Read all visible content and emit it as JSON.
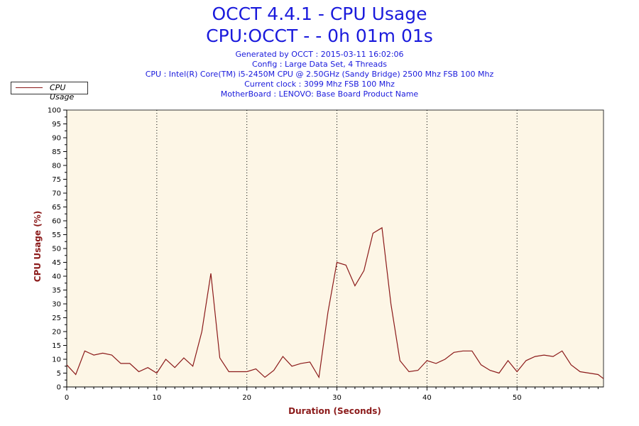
{
  "header": {
    "title_line1": "OCCT 4.4.1 - CPU Usage",
    "title_line2": "CPU:OCCT -  - 0h 01m 01s",
    "generated": "Generated by OCCT : 2015-03-11 16:02:06",
    "config": "Config : Large Data Set, 4 Threads",
    "cpu": "CPU : Intel(R) Core(TM) i5-2450M CPU @ 2.50GHz (Sandy Bridge) 2500 Mhz FSB 100 Mhz",
    "clock": "Current clock : 3099 Mhz FSB 100 Mhz",
    "motherboard": "MotherBoard : LENOVO: Base Board Product Name"
  },
  "colors": {
    "line": "#8b1a1a",
    "plot_background": "#fdf6e6",
    "title": "#1a1adc",
    "axis_label": "#8b1a1a"
  },
  "chart_data": {
    "type": "line",
    "xlabel": "Duration (Seconds)",
    "ylabel": "CPU Usage (%)",
    "xlim": [
      0,
      59.6
    ],
    "ylim": [
      0,
      100
    ],
    "x_ticks": [
      0,
      10,
      20,
      30,
      40,
      50
    ],
    "y_ticks": [
      0,
      5,
      10,
      15,
      20,
      25,
      30,
      35,
      40,
      45,
      50,
      55,
      60,
      65,
      70,
      75,
      80,
      85,
      90,
      95,
      100
    ],
    "grid": "vertical dotted at 10 s intervals",
    "legend_position": "top-left",
    "series": [
      {
        "name": "CPU Usage",
        "x": [
          0,
          1,
          2,
          3,
          4,
          5,
          6,
          7,
          8,
          9,
          10,
          11,
          12,
          13,
          14,
          15,
          16,
          17,
          18,
          19,
          20,
          21,
          22,
          23,
          24,
          25,
          26,
          27,
          28,
          29,
          30,
          31,
          32,
          33,
          34,
          35,
          36,
          37,
          38,
          39,
          40,
          41,
          42,
          43,
          44,
          45,
          46,
          47,
          48,
          49,
          50,
          51,
          52,
          53,
          54,
          55,
          56,
          57,
          58,
          59,
          59.6
        ],
        "values": [
          8,
          4.5,
          13,
          11.5,
          12.2,
          11.5,
          8.5,
          8.5,
          5.5,
          7,
          5,
          10,
          7,
          10.5,
          7.5,
          20,
          41,
          10.5,
          5.5,
          5.5,
          5.5,
          6.5,
          3.5,
          6,
          11,
          7.5,
          8.5,
          9,
          3.5,
          27,
          45,
          44,
          36.5,
          42,
          55.5,
          57.5,
          30,
          9.5,
          5.5,
          6,
          9.5,
          8.5,
          10,
          12.5,
          13,
          13,
          8,
          6,
          5,
          9.5,
          5.5,
          9.5,
          11,
          11.5,
          11,
          13,
          8,
          5.5,
          5,
          4.5,
          3
        ]
      }
    ]
  }
}
